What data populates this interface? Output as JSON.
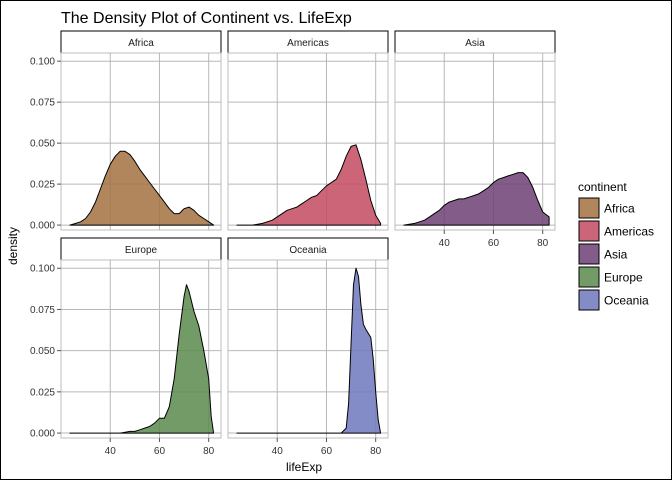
{
  "chart_data": {
    "type": "area",
    "title": "The Density Plot of Continent vs. LifeExp",
    "xlabel": "lifeExp",
    "ylabel": "density",
    "xlim": [
      20,
      85
    ],
    "ylim": [
      -0.003,
      0.105
    ],
    "xticks": [
      40,
      60,
      80
    ],
    "yticks": [
      0.0,
      0.025,
      0.05,
      0.075,
      0.1
    ],
    "ytick_labels": [
      "0.000",
      "0.025",
      "0.050",
      "0.075",
      "0.100"
    ],
    "grid": true,
    "facet_layout": "3 columns x 2 rows",
    "legend": {
      "title": "continent",
      "placement": "right",
      "entries": [
        "Africa",
        "Americas",
        "Asia",
        "Europe",
        "Oceania"
      ]
    },
    "series": [
      {
        "name": "Africa",
        "color": "#a5713f",
        "x": [
          23.6,
          26,
          28,
          30,
          32,
          34,
          36,
          38,
          40,
          42,
          44,
          46,
          48,
          50,
          52,
          54,
          56,
          58,
          60,
          62,
          64,
          66,
          68,
          70,
          72,
          74,
          76,
          78,
          80,
          82
        ],
        "y": [
          0.0,
          0.001,
          0.002,
          0.004,
          0.008,
          0.014,
          0.022,
          0.03,
          0.037,
          0.042,
          0.045,
          0.045,
          0.043,
          0.039,
          0.034,
          0.03,
          0.026,
          0.022,
          0.018,
          0.014,
          0.01,
          0.007,
          0.007,
          0.01,
          0.011,
          0.009,
          0.006,
          0.004,
          0.002,
          0.0
        ]
      },
      {
        "name": "Americas",
        "color": "#c44a60",
        "x": [
          23.6,
          30,
          34,
          38,
          40,
          42,
          44,
          46,
          48,
          50,
          52,
          54,
          56,
          58,
          60,
          62,
          64,
          66,
          68,
          70,
          72,
          74,
          76,
          78,
          80,
          82
        ],
        "y": [
          0.0,
          0.0,
          0.001,
          0.003,
          0.005,
          0.007,
          0.009,
          0.01,
          0.011,
          0.013,
          0.015,
          0.017,
          0.018,
          0.021,
          0.024,
          0.026,
          0.028,
          0.034,
          0.042,
          0.048,
          0.049,
          0.04,
          0.028,
          0.015,
          0.006,
          0.001
        ]
      },
      {
        "name": "Asia",
        "color": "#6d3f74",
        "x": [
          23.6,
          28,
          30,
          32,
          34,
          36,
          38,
          40,
          42,
          44,
          46,
          48,
          50,
          52,
          54,
          56,
          58,
          60,
          62,
          64,
          66,
          68,
          70,
          72,
          74,
          76,
          78,
          80,
          82.6
        ],
        "y": [
          0.0,
          0.001,
          0.002,
          0.003,
          0.005,
          0.007,
          0.009,
          0.012,
          0.014,
          0.015,
          0.016,
          0.016,
          0.017,
          0.018,
          0.019,
          0.021,
          0.023,
          0.026,
          0.028,
          0.029,
          0.03,
          0.031,
          0.032,
          0.032,
          0.029,
          0.023,
          0.015,
          0.008,
          0.005
        ]
      },
      {
        "name": "Europe",
        "color": "#5a8a4e",
        "x": [
          23.6,
          40,
          44,
          48,
          50,
          52,
          54,
          56,
          58,
          60,
          62,
          64,
          66,
          68,
          70,
          71,
          72,
          74,
          76,
          78,
          80,
          81,
          82
        ],
        "y": [
          0.0,
          0.0,
          0.0,
          0.001,
          0.001,
          0.002,
          0.003,
          0.004,
          0.006,
          0.009,
          0.009,
          0.016,
          0.033,
          0.06,
          0.083,
          0.09,
          0.086,
          0.074,
          0.065,
          0.05,
          0.033,
          0.01,
          0.0
        ]
      },
      {
        "name": "Oceania",
        "color": "#6e78bd",
        "x": [
          23.6,
          60,
          66,
          68,
          69,
          70,
          71,
          72,
          73,
          74,
          75,
          76,
          78,
          79,
          80,
          81,
          82
        ],
        "y": [
          0.0,
          0.0,
          0.0,
          0.003,
          0.018,
          0.055,
          0.09,
          0.1,
          0.095,
          0.078,
          0.066,
          0.063,
          0.058,
          0.045,
          0.025,
          0.008,
          0.0
        ]
      }
    ]
  }
}
